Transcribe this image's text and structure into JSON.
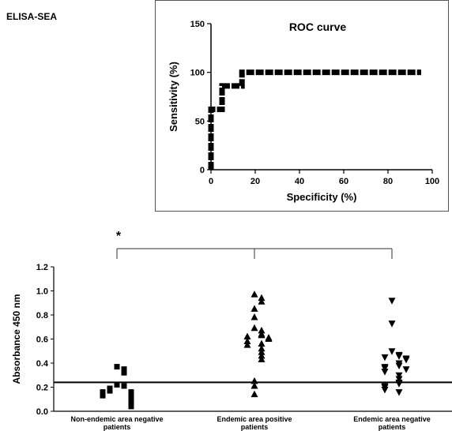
{
  "figure": {
    "title": "ELISA-SEA"
  },
  "chart_data": [
    {
      "type": "line",
      "title": "ROC curve",
      "xlabel": "Specificity (%)",
      "ylabel": "Sensitivity (%)",
      "xlim": [
        0,
        100
      ],
      "ylim": [
        0,
        150
      ],
      "x_ticks": [
        "0",
        "20",
        "40",
        "60",
        "80",
        "100"
      ],
      "y_ticks": [
        "0",
        "50",
        "100",
        "150"
      ],
      "grid": false,
      "series": [
        {
          "style": "step",
          "x": [
            0,
            0,
            0,
            5,
            5,
            14,
            14,
            95
          ],
          "y": [
            0,
            50,
            62,
            62,
            86,
            86,
            100,
            100
          ]
        }
      ]
    },
    {
      "type": "scatter",
      "xlabel": "",
      "ylabel": "Absorbance 450 nm",
      "ylim": [
        0,
        1.2
      ],
      "y_ticks": [
        "0.0",
        "0.2",
        "0.4",
        "0.6",
        "0.8",
        "1.0",
        "1.2"
      ],
      "categories": [
        "Non-endemic area negative patients",
        "Endemic area positive patients",
        "Endemic area negative patients"
      ],
      "cutoff": 0.24,
      "significance": {
        "label": "*",
        "from": 0,
        "to": [
          1,
          2
        ]
      },
      "series": [
        {
          "category": 0,
          "marker": "square",
          "values": [
            0.37,
            0.35,
            0.32,
            0.22,
            0.21,
            0.19,
            0.18,
            0.17,
            0.16,
            0.16,
            0.15,
            0.14,
            0.13,
            0.12,
            0.11,
            0.1,
            0.09,
            0.08,
            0.07,
            0.06,
            0.05,
            0.04
          ]
        },
        {
          "category": 1,
          "marker": "triangle-up",
          "values": [
            0.97,
            0.94,
            0.91,
            0.85,
            0.78,
            0.69,
            0.67,
            0.64,
            0.63,
            0.62,
            0.61,
            0.6,
            0.58,
            0.56,
            0.55,
            0.52,
            0.49,
            0.46,
            0.43,
            0.25,
            0.21,
            0.14
          ]
        },
        {
          "category": 2,
          "marker": "triangle-down",
          "values": [
            0.92,
            0.73,
            0.5,
            0.47,
            0.46,
            0.45,
            0.44,
            0.43,
            0.4,
            0.38,
            0.37,
            0.36,
            0.35,
            0.33,
            0.3,
            0.27,
            0.24,
            0.23,
            0.21,
            0.2,
            0.18,
            0.16
          ]
        }
      ]
    }
  ]
}
